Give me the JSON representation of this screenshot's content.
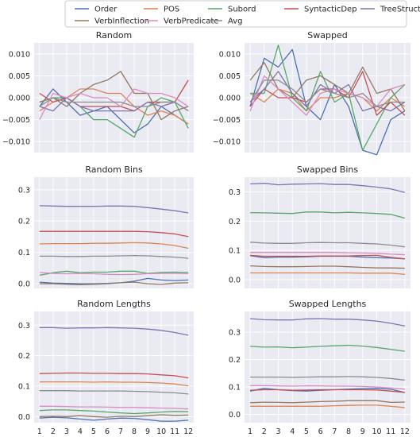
{
  "legend": {
    "entries": [
      {
        "name": "Order",
        "color": "#4c72b0"
      },
      {
        "name": "POS",
        "color": "#dd8452"
      },
      {
        "name": "Subord",
        "color": "#55a868"
      },
      {
        "name": "SyntacticDep",
        "color": "#c44e52"
      },
      {
        "name": "TreeStructure",
        "color": "#8172b3"
      },
      {
        "name": "VerbInflection",
        "color": "#937860"
      },
      {
        "name": "VerbPredicate",
        "color": "#da8bc3"
      },
      {
        "name": "Avg",
        "color": "#8c8c8c"
      }
    ],
    "placement": "top-center",
    "columns": 5
  },
  "chart_data": [
    {
      "type": "line",
      "title": "Random",
      "grid": true,
      "x": [
        1,
        2,
        3,
        4,
        5,
        6,
        7,
        8,
        9,
        10,
        11,
        12
      ],
      "ylim": [
        -0.0125,
        0.0125
      ],
      "yticks": [
        -0.01,
        -0.005,
        0.0,
        0.005,
        0.01
      ],
      "ytick_labels": [
        "−0.010",
        "−0.005",
        "0.000",
        "0.005",
        "0.010"
      ],
      "series": [
        {
          "name": "Order",
          "values": [
            -0.002,
            0.002,
            -0.001,
            -0.004,
            -0.003,
            -0.002,
            -0.005,
            -0.008,
            -0.006,
            -0.002,
            -0.004,
            -0.006
          ]
        },
        {
          "name": "POS",
          "values": [
            -0.003,
            -0.001,
            0.0,
            0.002,
            0.002,
            0.001,
            0.001,
            -0.002,
            -0.004,
            -0.003,
            -0.004,
            -0.006
          ]
        },
        {
          "name": "Subord",
          "values": [
            -0.001,
            0.0,
            0.0,
            -0.002,
            -0.005,
            -0.005,
            -0.007,
            -0.009,
            -0.002,
            0.0,
            -0.001,
            -0.007
          ]
        },
        {
          "name": "SyntacticDep",
          "values": [
            0.001,
            -0.001,
            0.0,
            -0.002,
            -0.002,
            -0.002,
            -0.002,
            -0.003,
            -0.001,
            -0.001,
            -0.001,
            0.004
          ]
        },
        {
          "name": "TreeStructure",
          "values": [
            -0.002,
            -0.003,
            0.0,
            -0.002,
            -0.003,
            -0.003,
            -0.003,
            -0.003,
            -0.001,
            -0.002,
            -0.001,
            -0.003
          ]
        },
        {
          "name": "VerbInflection",
          "values": [
            -0.001,
            0.0,
            -0.002,
            0.001,
            0.003,
            0.004,
            0.006,
            0.001,
            0.001,
            -0.005,
            -0.003,
            -0.002
          ]
        },
        {
          "name": "VerbPredicate",
          "values": [
            -0.005,
            0.001,
            0.0,
            0.001,
            0.0,
            0.0,
            -0.002,
            0.002,
            0.001,
            0.001,
            0.0,
            -0.002
          ]
        },
        {
          "name": "Avg",
          "values": [
            -0.002,
            0.0,
            -0.001,
            -0.001,
            -0.001,
            -0.001,
            -0.001,
            -0.002,
            -0.002,
            -0.001,
            -0.001,
            -0.003
          ]
        }
      ]
    },
    {
      "type": "line",
      "title": "Swapped",
      "grid": true,
      "x": [
        1,
        2,
        3,
        4,
        5,
        6,
        7,
        8,
        9,
        10,
        11,
        12
      ],
      "ylim": [
        -0.0125,
        0.0125
      ],
      "yticks": [
        -0.01,
        -0.005,
        0.0,
        0.005,
        0.01
      ],
      "ytick_labels": [
        "−0.010",
        "−0.005",
        "0.000",
        "0.005",
        "0.010"
      ],
      "series": [
        {
          "name": "Order",
          "values": [
            -0.002,
            0.009,
            0.007,
            0.011,
            -0.002,
            -0.005,
            0.003,
            -0.002,
            -0.012,
            -0.013,
            -0.005,
            -0.003
          ]
        },
        {
          "name": "POS",
          "values": [
            0.001,
            -0.001,
            0.002,
            0.001,
            -0.003,
            0.0,
            0.0,
            0.001,
            0.0,
            -0.003,
            0.0,
            -0.002
          ]
        },
        {
          "name": "Subord",
          "values": [
            0.001,
            0.001,
            0.012,
            0.0,
            -0.003,
            0.006,
            -0.001,
            0.001,
            -0.012,
            -0.006,
            0.0,
            0.003
          ]
        },
        {
          "name": "SyntacticDep",
          "values": [
            -0.002,
            0.002,
            0.0,
            0.0,
            -0.001,
            0.002,
            0.002,
            0.0,
            0.006,
            -0.004,
            -0.001,
            -0.004
          ]
        },
        {
          "name": "TreeStructure",
          "values": [
            -0.001,
            0.002,
            0.006,
            0.001,
            -0.002,
            0.003,
            0.001,
            0.003,
            -0.003,
            -0.002,
            -0.003,
            -0.001
          ]
        },
        {
          "name": "VerbInflection",
          "values": [
            0.004,
            0.008,
            0.002,
            0.0,
            0.004,
            0.005,
            0.003,
            0.001,
            0.007,
            0.001,
            0.002,
            -0.003
          ]
        },
        {
          "name": "VerbPredicate",
          "values": [
            -0.003,
            0.005,
            0.002,
            -0.001,
            -0.004,
            0.001,
            0.002,
            0.001,
            0.0,
            -0.002,
            0.002,
            0.003
          ]
        },
        {
          "name": "Avg",
          "values": [
            -0.001,
            0.004,
            0.004,
            0.002,
            -0.001,
            0.002,
            0.001,
            0.0,
            0.001,
            -0.002,
            -0.001,
            -0.001
          ]
        }
      ]
    },
    {
      "type": "line",
      "title": "Random Bins",
      "grid": true,
      "x": [
        1,
        2,
        3,
        4,
        5,
        6,
        7,
        8,
        9,
        10,
        11,
        12
      ],
      "ylim": [
        -0.015,
        0.34
      ],
      "yticks": [
        0.0,
        0.1,
        0.2,
        0.3
      ],
      "ytick_labels": [
        "0.0",
        "0.1",
        "0.2",
        "0.3"
      ],
      "series": [
        {
          "name": "Order",
          "values": [
            0.005,
            0.002,
            0.001,
            0.0,
            0.0,
            0.001,
            0.003,
            0.008,
            0.017,
            0.012,
            0.01,
            0.012
          ]
        },
        {
          "name": "POS",
          "values": [
            0.127,
            0.128,
            0.128,
            0.128,
            0.129,
            0.129,
            0.13,
            0.131,
            0.13,
            0.127,
            0.122,
            0.113
          ]
        },
        {
          "name": "Subord",
          "values": [
            0.027,
            0.035,
            0.04,
            0.035,
            0.037,
            0.037,
            0.04,
            0.04,
            0.033,
            0.036,
            0.037,
            0.036
          ]
        },
        {
          "name": "SyntacticDep",
          "values": [
            0.167,
            0.167,
            0.167,
            0.167,
            0.167,
            0.167,
            0.167,
            0.167,
            0.166,
            0.163,
            0.159,
            0.15
          ]
        },
        {
          "name": "TreeStructure",
          "values": [
            0.249,
            0.248,
            0.247,
            0.247,
            0.247,
            0.248,
            0.248,
            0.247,
            0.243,
            0.238,
            0.233,
            0.226
          ]
        },
        {
          "name": "VerbInflection",
          "values": [
            0.0,
            0.0,
            -0.002,
            -0.003,
            -0.002,
            0.0,
            0.003,
            0.005,
            0.0,
            -0.002,
            0.002,
            0.003
          ]
        },
        {
          "name": "VerbPredicate",
          "values": [
            0.036,
            0.033,
            0.032,
            0.033,
            0.032,
            0.03,
            0.029,
            0.03,
            0.032,
            0.033,
            0.033,
            0.032
          ]
        },
        {
          "name": "Avg",
          "values": [
            0.088,
            0.088,
            0.087,
            0.087,
            0.088,
            0.088,
            0.089,
            0.09,
            0.089,
            0.087,
            0.085,
            0.081
          ]
        }
      ]
    },
    {
      "type": "line",
      "title": "Swapped Bins",
      "grid": true,
      "x": [
        1,
        2,
        3,
        4,
        5,
        6,
        7,
        8,
        9,
        10,
        11,
        12
      ],
      "ylim": [
        -0.03,
        0.35
      ],
      "yticks": [
        0.0,
        0.1,
        0.2,
        0.3
      ],
      "ytick_labels": [
        "0.0",
        "0.1",
        "0.2",
        "0.3"
      ],
      "series": [
        {
          "name": "Order",
          "values": [
            0.082,
            0.075,
            0.077,
            0.077,
            0.078,
            0.08,
            0.08,
            0.08,
            0.077,
            0.075,
            0.074,
            0.071
          ]
        },
        {
          "name": "POS",
          "values": [
            0.023,
            0.023,
            0.023,
            0.023,
            0.023,
            0.023,
            0.023,
            0.023,
            0.022,
            0.022,
            0.022,
            0.018
          ]
        },
        {
          "name": "Subord",
          "values": [
            0.229,
            0.228,
            0.227,
            0.226,
            0.231,
            0.231,
            0.228,
            0.23,
            0.228,
            0.226,
            0.223,
            0.21
          ]
        },
        {
          "name": "SyntacticDep",
          "values": [
            0.083,
            0.08,
            0.08,
            0.08,
            0.08,
            0.081,
            0.081,
            0.081,
            0.082,
            0.083,
            0.076,
            0.071
          ]
        },
        {
          "name": "TreeStructure",
          "values": [
            0.327,
            0.329,
            0.324,
            0.326,
            0.327,
            0.328,
            0.325,
            0.325,
            0.321,
            0.316,
            0.31,
            0.298
          ]
        },
        {
          "name": "VerbInflection",
          "values": [
            0.047,
            0.045,
            0.044,
            0.044,
            0.045,
            0.046,
            0.046,
            0.044,
            0.042,
            0.04,
            0.04,
            0.039
          ]
        },
        {
          "name": "VerbPredicate",
          "values": [
            0.093,
            0.093,
            0.093,
            0.093,
            0.093,
            0.093,
            0.093,
            0.092,
            0.091,
            0.09,
            0.087,
            0.085
          ]
        },
        {
          "name": "Avg",
          "values": [
            0.128,
            0.125,
            0.124,
            0.124,
            0.126,
            0.127,
            0.126,
            0.126,
            0.124,
            0.122,
            0.118,
            0.112
          ]
        }
      ]
    },
    {
      "type": "line",
      "title": "Random Lengths",
      "grid": true,
      "x": [
        1,
        2,
        3,
        4,
        5,
        6,
        7,
        8,
        9,
        10,
        11,
        12
      ],
      "ylim": [
        -0.02,
        0.345
      ],
      "yticks": [
        0.0,
        0.1,
        0.2,
        0.3
      ],
      "ytick_labels": [
        "0.0",
        "0.1",
        "0.2",
        "0.3"
      ],
      "series": [
        {
          "name": "Order",
          "values": [
            -0.005,
            -0.002,
            -0.004,
            -0.008,
            -0.012,
            -0.008,
            -0.005,
            -0.006,
            -0.01,
            -0.015,
            -0.015,
            -0.012
          ]
        },
        {
          "name": "POS",
          "values": [
            0.114,
            0.114,
            0.114,
            0.114,
            0.113,
            0.114,
            0.113,
            0.113,
            0.112,
            0.11,
            0.107,
            0.101
          ]
        },
        {
          "name": "Subord",
          "values": [
            0.02,
            0.022,
            0.022,
            0.02,
            0.018,
            0.015,
            0.012,
            0.01,
            0.012,
            0.015,
            0.017,
            0.016
          ]
        },
        {
          "name": "SyntacticDep",
          "values": [
            0.141,
            0.142,
            0.143,
            0.143,
            0.142,
            0.142,
            0.141,
            0.141,
            0.14,
            0.137,
            0.134,
            0.127
          ]
        },
        {
          "name": "TreeStructure",
          "values": [
            0.292,
            0.292,
            0.29,
            0.291,
            0.291,
            0.292,
            0.291,
            0.29,
            0.287,
            0.283,
            0.276,
            0.267
          ]
        },
        {
          "name": "VerbInflection",
          "values": [
            0.0,
            0.001,
            0.0,
            0.003,
            0.0,
            -0.002,
            0.001,
            0.0,
            0.003,
            0.006,
            0.004,
            0.005
          ]
        },
        {
          "name": "VerbPredicate",
          "values": [
            0.034,
            0.034,
            0.033,
            0.032,
            0.032,
            0.031,
            0.03,
            0.03,
            0.029,
            0.028,
            0.027,
            0.025
          ]
        },
        {
          "name": "Avg",
          "values": [
            0.085,
            0.085,
            0.085,
            0.084,
            0.084,
            0.084,
            0.084,
            0.083,
            0.082,
            0.08,
            0.078,
            0.074
          ]
        }
      ]
    },
    {
      "type": "line",
      "title": "Swapped Lengths",
      "grid": true,
      "x": [
        1,
        2,
        3,
        4,
        5,
        6,
        7,
        8,
        9,
        10,
        11,
        12
      ],
      "ylim": [
        -0.03,
        0.375
      ],
      "yticks": [
        0.0,
        0.1,
        0.2,
        0.3
      ],
      "ytick_labels": [
        "0.0",
        "0.1",
        "0.2",
        "0.3"
      ],
      "series": [
        {
          "name": "Order",
          "values": [
            0.085,
            0.095,
            0.09,
            0.087,
            0.085,
            0.088,
            0.09,
            0.092,
            0.094,
            0.095,
            0.092,
            0.08
          ]
        },
        {
          "name": "POS",
          "values": [
            0.03,
            0.03,
            0.03,
            0.03,
            0.03,
            0.03,
            0.032,
            0.033,
            0.034,
            0.034,
            0.03,
            0.025
          ]
        },
        {
          "name": "Subord",
          "values": [
            0.248,
            0.245,
            0.246,
            0.243,
            0.245,
            0.248,
            0.25,
            0.252,
            0.249,
            0.244,
            0.237,
            0.23
          ]
        },
        {
          "name": "SyntacticDep",
          "values": [
            0.088,
            0.09,
            0.09,
            0.088,
            0.089,
            0.09,
            0.09,
            0.09,
            0.09,
            0.089,
            0.085,
            0.08
          ]
        },
        {
          "name": "TreeStructure",
          "values": [
            0.349,
            0.345,
            0.344,
            0.344,
            0.348,
            0.349,
            0.347,
            0.347,
            0.344,
            0.34,
            0.332,
            0.322
          ]
        },
        {
          "name": "VerbInflection",
          "values": [
            0.043,
            0.045,
            0.044,
            0.043,
            0.045,
            0.047,
            0.048,
            0.05,
            0.05,
            0.05,
            0.044,
            0.045
          ]
        },
        {
          "name": "VerbPredicate",
          "values": [
            0.105,
            0.105,
            0.104,
            0.103,
            0.104,
            0.104,
            0.103,
            0.103,
            0.102,
            0.1,
            0.097,
            0.092
          ]
        },
        {
          "name": "Avg",
          "values": [
            0.136,
            0.136,
            0.136,
            0.135,
            0.136,
            0.137,
            0.137,
            0.138,
            0.137,
            0.135,
            0.131,
            0.125
          ]
        }
      ]
    }
  ]
}
